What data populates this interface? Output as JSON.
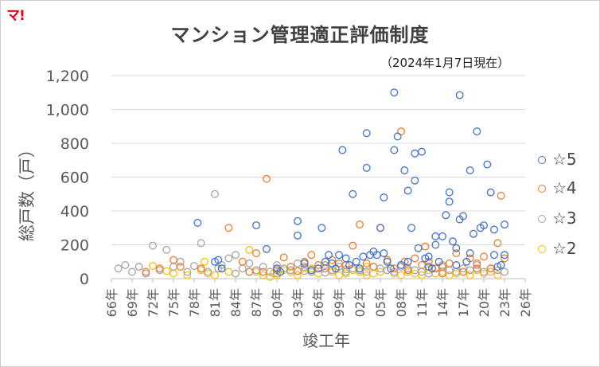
{
  "logo": "マ!",
  "chart_data": {
    "type": "scatter",
    "title": "マンション管理適正評価制度",
    "subtitle": "（2024年1月7日現在）",
    "xlabel": "竣工年",
    "ylabel": "総戸数（戸）",
    "ylim": [
      0,
      1200
    ],
    "y_ticks": [
      "0",
      "200",
      "400",
      "600",
      "800",
      "1,000",
      "1,200"
    ],
    "xlim": [
      1966,
      2026
    ],
    "x_ticks": [
      "66年",
      "69年",
      "72年",
      "75年",
      "78年",
      "81年",
      "84年",
      "87年",
      "90年",
      "93年",
      "96年",
      "99年",
      "02年",
      "05年",
      "08年",
      "11年",
      "14年",
      "17年",
      "20年",
      "23年",
      "26年"
    ],
    "grid": "horizontal",
    "legend_position": "right",
    "series": [
      {
        "name": "☆5",
        "color": "#4472c4",
        "points": [
          [
            1978.5,
            330
          ],
          [
            1981,
            100
          ],
          [
            1981.5,
            110
          ],
          [
            1982,
            60
          ],
          [
            1987,
            315
          ],
          [
            1988.5,
            175
          ],
          [
            1990,
            60
          ],
          [
            1990.5,
            40
          ],
          [
            1993,
            340
          ],
          [
            1993,
            255
          ],
          [
            1994,
            90
          ],
          [
            1995,
            50
          ],
          [
            1996,
            60
          ],
          [
            1996.5,
            300
          ],
          [
            1997,
            100
          ],
          [
            1997.5,
            140
          ],
          [
            1998,
            90
          ],
          [
            1998.5,
            60
          ],
          [
            1999,
            140
          ],
          [
            1999.5,
            760
          ],
          [
            2000,
            120
          ],
          [
            2000.5,
            80
          ],
          [
            2001,
            500
          ],
          [
            2001.5,
            100
          ],
          [
            2002,
            60
          ],
          [
            2002.5,
            130
          ],
          [
            2003,
            860
          ],
          [
            2003,
            655
          ],
          [
            2003.5,
            140
          ],
          [
            2004,
            160
          ],
          [
            2004.5,
            140
          ],
          [
            2005,
            300
          ],
          [
            2005.5,
            480
          ],
          [
            2005.5,
            150
          ],
          [
            2006,
            100
          ],
          [
            2006.5,
            60
          ],
          [
            2007,
            760
          ],
          [
            2007,
            1100
          ],
          [
            2007.5,
            840
          ],
          [
            2008,
            80
          ],
          [
            2008.5,
            640
          ],
          [
            2009,
            520
          ],
          [
            2009.5,
            300
          ],
          [
            2010,
            740
          ],
          [
            2010,
            580
          ],
          [
            2010.5,
            180
          ],
          [
            2011,
            750
          ],
          [
            2011.5,
            120
          ],
          [
            2012,
            70
          ],
          [
            2012.5,
            60
          ],
          [
            2013,
            250
          ],
          [
            2013,
            200
          ],
          [
            2013.5,
            100
          ],
          [
            2014,
            250
          ],
          [
            2014.5,
            375
          ],
          [
            2015,
            510
          ],
          [
            2015,
            455
          ],
          [
            2015.5,
            220
          ],
          [
            2016,
            180
          ],
          [
            2016.5,
            350
          ],
          [
            2016.5,
            1085
          ],
          [
            2017,
            370
          ],
          [
            2017.5,
            100
          ],
          [
            2018,
            640
          ],
          [
            2018.5,
            265
          ],
          [
            2019,
            870
          ],
          [
            2019.5,
            300
          ],
          [
            2020,
            315
          ],
          [
            2020.5,
            675
          ],
          [
            2021,
            510
          ],
          [
            2021.5,
            290
          ],
          [
            2021.5,
            140
          ],
          [
            2022,
            70
          ],
          [
            2022.5,
            80
          ],
          [
            2023,
            320
          ],
          [
            2023,
            140
          ],
          [
            2018,
            150
          ],
          [
            2016,
            80
          ],
          [
            2012,
            130
          ],
          [
            2009,
            100
          ]
        ]
      },
      {
        "name": "☆4",
        "color": "#ed7d31",
        "points": [
          [
            1971,
            40
          ],
          [
            1973,
            60
          ],
          [
            1975,
            110
          ],
          [
            1976,
            70
          ],
          [
            1979,
            60
          ],
          [
            1983,
            300
          ],
          [
            1985,
            100
          ],
          [
            1986,
            40
          ],
          [
            1987,
            150
          ],
          [
            1988,
            40
          ],
          [
            1988.5,
            590
          ],
          [
            1990,
            50
          ],
          [
            1991,
            125
          ],
          [
            1992,
            70
          ],
          [
            1993,
            45
          ],
          [
            1994,
            100
          ],
          [
            1995,
            140
          ],
          [
            1996,
            80
          ],
          [
            1997,
            60
          ],
          [
            1998,
            110
          ],
          [
            1999,
            90
          ],
          [
            2000,
            80
          ],
          [
            2001,
            195
          ],
          [
            2002,
            320
          ],
          [
            2003,
            90
          ],
          [
            2004,
            70
          ],
          [
            2005,
            300
          ],
          [
            2006,
            110
          ],
          [
            2007,
            60
          ],
          [
            2008,
            870
          ],
          [
            2008.5,
            100
          ],
          [
            2009,
            50
          ],
          [
            2010,
            120
          ],
          [
            2011,
            80
          ],
          [
            2011.5,
            190
          ],
          [
            2012,
            100
          ],
          [
            2013,
            60
          ],
          [
            2014,
            70
          ],
          [
            2015,
            90
          ],
          [
            2016,
            150
          ],
          [
            2017,
            40
          ],
          [
            2018,
            120
          ],
          [
            2019,
            60
          ],
          [
            2020,
            130
          ],
          [
            2021,
            60
          ],
          [
            2022,
            210
          ],
          [
            2022.5,
            490
          ],
          [
            2023,
            120
          ],
          [
            2019,
            90
          ],
          [
            2014,
            30
          ]
        ]
      },
      {
        "name": "☆3",
        "color": "#a5a5a5",
        "points": [
          [
            1967,
            60
          ],
          [
            1968,
            80
          ],
          [
            1969,
            40
          ],
          [
            1970,
            70
          ],
          [
            1971,
            30
          ],
          [
            1972,
            195
          ],
          [
            1973,
            50
          ],
          [
            1974,
            170
          ],
          [
            1975,
            70
          ],
          [
            1976,
            100
          ],
          [
            1977,
            40
          ],
          [
            1978,
            75
          ],
          [
            1979,
            210
          ],
          [
            1980,
            40
          ],
          [
            1981,
            500
          ],
          [
            1981.5,
            60
          ],
          [
            1982,
            80
          ],
          [
            1983,
            120
          ],
          [
            1984,
            140
          ],
          [
            1985,
            60
          ],
          [
            1986,
            90
          ],
          [
            1987,
            50
          ],
          [
            1988,
            70
          ],
          [
            1989,
            40
          ],
          [
            1990,
            80
          ],
          [
            1991,
            60
          ],
          [
            1992,
            50
          ],
          [
            1993,
            90
          ],
          [
            1994,
            70
          ],
          [
            1995,
            40
          ],
          [
            1996,
            60
          ],
          [
            1997,
            80
          ],
          [
            1998,
            50
          ],
          [
            1999,
            70
          ],
          [
            2000,
            40
          ],
          [
            2001,
            60
          ],
          [
            2002,
            50
          ],
          [
            2003,
            40
          ],
          [
            2004,
            70
          ],
          [
            2005,
            60
          ],
          [
            2006,
            50
          ],
          [
            2007,
            40
          ],
          [
            2008,
            70
          ],
          [
            2009,
            60
          ],
          [
            2010,
            50
          ],
          [
            2011,
            40
          ],
          [
            2012,
            30
          ],
          [
            2013,
            60
          ],
          [
            2014,
            80
          ],
          [
            2015,
            50
          ],
          [
            2016,
            40
          ],
          [
            2017,
            60
          ],
          [
            2018,
            50
          ],
          [
            2019,
            80
          ],
          [
            2020,
            40
          ],
          [
            2021,
            60
          ],
          [
            2022,
            50
          ],
          [
            2023,
            40
          ],
          [
            1984,
            30
          ],
          [
            1986,
            40
          ],
          [
            1990,
            30
          ],
          [
            1994,
            45
          ],
          [
            1997,
            35
          ],
          [
            2000,
            55
          ]
        ]
      },
      {
        "name": "☆2",
        "color": "#ffc000",
        "points": [
          [
            1970,
            70
          ],
          [
            1972,
            75
          ],
          [
            1974,
            45
          ],
          [
            1975,
            30
          ],
          [
            1977,
            20
          ],
          [
            1979,
            50
          ],
          [
            1979.5,
            100
          ],
          [
            1980,
            30
          ],
          [
            1981,
            20
          ],
          [
            1982,
            60
          ],
          [
            1983,
            40
          ],
          [
            1984,
            30
          ],
          [
            1986,
            170
          ],
          [
            1987,
            40
          ],
          [
            1988,
            20
          ],
          [
            1989,
            10
          ],
          [
            1989.5,
            30
          ],
          [
            1990,
            20
          ],
          [
            1991,
            50
          ],
          [
            1992,
            40
          ],
          [
            1993,
            20
          ],
          [
            1994,
            60
          ],
          [
            1995,
            40
          ],
          [
            1996,
            30
          ],
          [
            1997,
            80
          ],
          [
            1998,
            40
          ],
          [
            1999,
            20
          ],
          [
            2000,
            30
          ],
          [
            2001,
            50
          ],
          [
            2002,
            40
          ],
          [
            2003,
            20
          ],
          [
            2004,
            30
          ],
          [
            2005,
            40
          ],
          [
            2006,
            50
          ],
          [
            2007,
            30
          ],
          [
            2008,
            20
          ],
          [
            2009,
            40
          ],
          [
            2010,
            30
          ],
          [
            2011,
            20
          ],
          [
            2012,
            50
          ],
          [
            2013,
            30
          ],
          [
            2014,
            40
          ],
          [
            2015,
            20
          ],
          [
            2016,
            30
          ],
          [
            2017,
            40
          ],
          [
            2018,
            20
          ],
          [
            2019,
            50
          ],
          [
            2020,
            30
          ],
          [
            2021,
            40
          ],
          [
            2022,
            20
          ],
          [
            1995,
            60
          ],
          [
            2003,
            70
          ]
        ]
      }
    ]
  }
}
